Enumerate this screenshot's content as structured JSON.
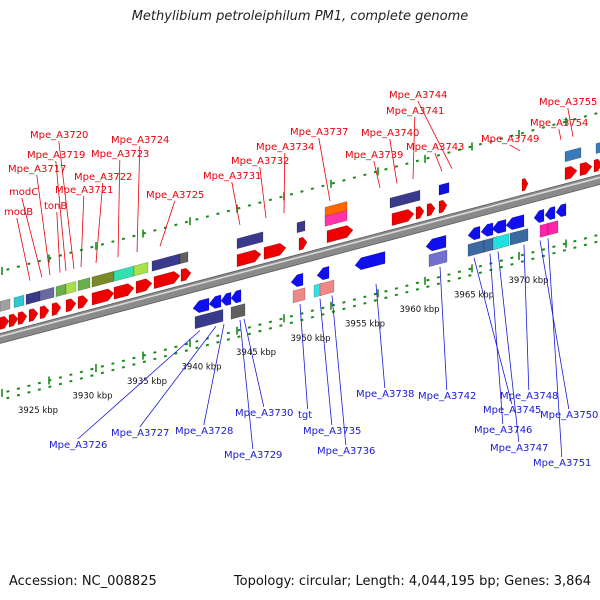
{
  "title": "Methylibium petroleiphilum PM1, complete genome",
  "footer": {
    "accession": "Accession: NC_008825",
    "topology": "Topology: circular; Length: 4,044,195 bp; Genes: 3,864"
  },
  "colors": {
    "top_label": "#e8000b",
    "bottom_label": "#1a1ad6",
    "backbone": "#8a8a8a",
    "tick": "#1a8a1a"
  },
  "kbp_ticks": [
    "3925 kbp",
    "3930 kbp",
    "3935 kbp",
    "3940 kbp",
    "3945 kbp",
    "3950 kbp",
    "3955 kbp",
    "3960 kbp",
    "3965 kbp",
    "3970 kbp"
  ],
  "top_labels": [
    "modB",
    "modC",
    "Mpe_A3717",
    "tonB",
    "Mpe_A3719",
    "Mpe_A3720",
    "Mpe_A3721",
    "Mpe_A3722",
    "Mpe_A3723",
    "Mpe_A3724",
    "Mpe_A3725",
    "Mpe_A3731",
    "Mpe_A3732",
    "Mpe_A3734",
    "Mpe_A3737",
    "Mpe_A3739",
    "Mpe_A3740",
    "Mpe_A3741",
    "Mpe_A3743",
    "Mpe_A3744",
    "Mpe_A3749",
    "Mpe_A3754",
    "Mpe_A3755"
  ],
  "bottom_labels": [
    "Mpe_A3726",
    "Mpe_A3727",
    "Mpe_A3728",
    "Mpe_A3729",
    "Mpe_A3730",
    "tgt",
    "Mpe_A3735",
    "Mpe_A3736",
    "Mpe_A3738",
    "Mpe_A3742",
    "Mpe_A3745",
    "Mpe_A3746",
    "Mpe_A3747",
    "Mpe_A3748",
    "Mpe_A3750",
    "Mpe_A3751"
  ]
}
